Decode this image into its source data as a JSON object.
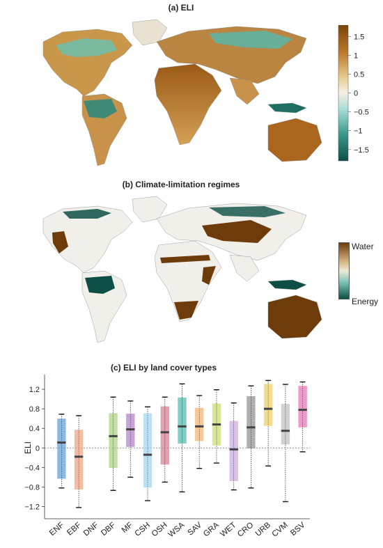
{
  "panels": {
    "a": {
      "title": "(a) ELI",
      "colorbar": {
        "ticks": [
          "1.5",
          "1",
          "0.5",
          "0",
          "−0.5",
          "−1",
          "−1.5"
        ],
        "colors": [
          "#7a4508",
          "#b8782c",
          "#e6c98b",
          "#f4f0e6",
          "#a9ddd4",
          "#3b9b8c",
          "#0d4f46"
        ]
      }
    },
    "b": {
      "title": "(b) Climate-limitation regimes",
      "colorbar": {
        "top_label": "Water",
        "bottom_label": "Energy",
        "colors": [
          "#6e3c0a",
          "#f1e8d6",
          "#0d4f46"
        ]
      }
    }
  },
  "chart_data": [
    {
      "type": "map",
      "title": "(a) ELI",
      "legend": "colorbar-right",
      "colorbar_range": [
        -1.8,
        1.8
      ]
    },
    {
      "type": "map",
      "title": "(b) Climate-limitation regimes",
      "legend": "colorbar-right"
    },
    {
      "type": "box",
      "title": "(c) ELI by land cover types",
      "ylabel": "ELI",
      "xlabel": "",
      "ylim": [
        -1.45,
        1.5
      ],
      "yticks": [
        -1.2,
        -0.8,
        -0.4,
        0,
        0.4,
        0.8,
        1.2
      ],
      "ytick_labels": [
        "−1.2",
        "−0.8",
        "−0.4",
        "0",
        "0.4",
        "0.8",
        "1.2"
      ],
      "reference_line": 0,
      "grid": false,
      "categories": [
        "ENF",
        "EBF",
        "DNF",
        "DBF",
        "MF",
        "CSH",
        "OSH",
        "WSA",
        "SAV",
        "GRA",
        "WET",
        "CRO",
        "URB",
        "CVM",
        "BSV"
      ],
      "boxes": [
        {
          "label": "ENF",
          "whisker_low": -0.82,
          "q1": -0.63,
          "median": 0.11,
          "q3": 0.6,
          "whisker_high": 0.69,
          "color": "#5b9bd5"
        },
        {
          "label": "EBF",
          "whisker_low": -1.22,
          "q1": -0.85,
          "median": -0.18,
          "q3": 0.37,
          "whisker_high": 0.66,
          "color": "#f0a07a"
        },
        {
          "label": "DNF"
        },
        {
          "label": "DBF",
          "whisker_low": -0.87,
          "q1": -0.41,
          "median": 0.24,
          "q3": 0.71,
          "whisker_high": 1.04,
          "color": "#a8d07a"
        },
        {
          "label": "MF",
          "whisker_low": -0.6,
          "q1": 0.02,
          "median": 0.38,
          "q3": 0.7,
          "whisker_high": 0.96,
          "color": "#b07cc6"
        },
        {
          "label": "CSH",
          "whisker_low": -1.08,
          "q1": -0.81,
          "median": -0.14,
          "q3": 0.71,
          "whisker_high": 0.84,
          "color": "#9fd4ee"
        },
        {
          "label": "OSH",
          "whisker_low": -0.7,
          "q1": -0.34,
          "median": 0.32,
          "q3": 0.85,
          "whisker_high": 1.04,
          "color": "#d47a8e"
        },
        {
          "label": "WSA",
          "whisker_low": -0.9,
          "q1": 0.09,
          "median": 0.44,
          "q3": 1.03,
          "whisker_high": 1.31,
          "color": "#4cb8a6"
        },
        {
          "label": "SAV",
          "whisker_low": -0.42,
          "q1": 0.14,
          "median": 0.44,
          "q3": 0.82,
          "whisker_high": 1.07,
          "color": "#f4b06e"
        },
        {
          "label": "GRA",
          "whisker_low": -0.31,
          "q1": 0.05,
          "median": 0.48,
          "q3": 0.91,
          "whisker_high": 1.19,
          "color": "#c8dc6a"
        },
        {
          "label": "WET",
          "whisker_low": -0.86,
          "q1": -0.68,
          "median": -0.03,
          "q3": 0.55,
          "whisker_high": 0.92,
          "color": "#c9a8e0"
        },
        {
          "label": "CRO",
          "whisker_low": -0.82,
          "q1": -0.01,
          "median": 0.42,
          "q3": 1.06,
          "whisker_high": 1.27,
          "color": "#8c8c8c"
        },
        {
          "label": "URB",
          "whisker_low": -0.37,
          "q1": 0.45,
          "median": 0.8,
          "q3": 1.31,
          "whisker_high": 1.38,
          "color": "#f2cf5e"
        },
        {
          "label": "CVM",
          "whisker_low": -1.1,
          "q1": 0.07,
          "median": 0.35,
          "q3": 0.9,
          "whisker_high": 1.3,
          "color": "#bdbdbd"
        },
        {
          "label": "BSV",
          "whisker_low": -0.08,
          "q1": 0.42,
          "median": 0.78,
          "q3": 1.27,
          "whisker_high": 1.35,
          "color": "#e56db5"
        }
      ]
    }
  ]
}
